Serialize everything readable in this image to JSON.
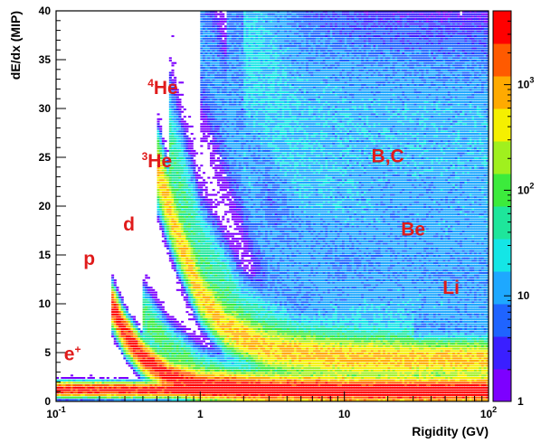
{
  "chart_data": {
    "type": "heatmap",
    "title": "",
    "xlabel": "Rigidity (GV)",
    "ylabel": "dE/dx (MIP)",
    "x_scale": "log",
    "xlim": [
      0.1,
      100
    ],
    "ylim": [
      0,
      40
    ],
    "x_ticks": [
      {
        "base": "10",
        "exp": "-1"
      },
      {
        "base": "1",
        "exp": ""
      },
      {
        "base": "10",
        "exp": ""
      },
      {
        "base": "10",
        "exp": "2"
      }
    ],
    "y_ticks": [
      "0",
      "5",
      "10",
      "15",
      "20",
      "25",
      "30",
      "35",
      "40"
    ],
    "colorbar": {
      "scale": "log",
      "range": [
        1,
        5000
      ],
      "ticks": [
        {
          "base": "1",
          "exp": ""
        },
        {
          "base": "10",
          "exp": ""
        },
        {
          "base": "10",
          "exp": "2"
        },
        {
          "base": "10",
          "exp": "3"
        }
      ],
      "colors": [
        "#7d00ff",
        "#3a1fff",
        "#1f64ff",
        "#1ea8ff",
        "#14e6e6",
        "#1ee69b",
        "#3ceb3c",
        "#a0f01e",
        "#f5f000",
        "#ffaa00",
        "#ff5a00",
        "#ff0000"
      ]
    },
    "bands": [
      {
        "label": "e⁺",
        "points": [
          [
            0.1,
            1.2
          ],
          [
            1,
            1.1
          ],
          [
            10,
            1.0
          ],
          [
            100,
            1.0
          ]
        ]
      },
      {
        "label": "p",
        "points": [
          [
            0.24,
            10
          ],
          [
            0.3,
            7
          ],
          [
            0.4,
            4.5
          ],
          [
            0.6,
            2.5
          ],
          [
            1,
            1.6
          ],
          [
            3,
            1.2
          ],
          [
            10,
            1.1
          ],
          [
            100,
            1.1
          ]
        ]
      },
      {
        "label": "d",
        "points": [
          [
            0.4,
            9
          ],
          [
            0.6,
            5.5
          ],
          [
            1,
            3
          ],
          [
            2,
            1.8
          ],
          [
            10,
            1.3
          ]
        ]
      },
      {
        "label": "³He",
        "points": [
          [
            0.5,
            24
          ],
          [
            0.7,
            17
          ],
          [
            1,
            11
          ],
          [
            1.5,
            7.5
          ],
          [
            3,
            5.2
          ],
          [
            10,
            4.4
          ],
          [
            100,
            4.2
          ]
        ]
      },
      {
        "label": "⁴He",
        "points": [
          [
            0.6,
            26
          ],
          [
            1,
            15
          ],
          [
            2,
            8
          ],
          [
            5,
            5.2
          ],
          [
            30,
            4.4
          ]
        ]
      },
      {
        "label": "Li",
        "points": [
          [
            1,
            38
          ],
          [
            3,
            15
          ],
          [
            10,
            10
          ],
          [
            100,
            9
          ]
        ]
      },
      {
        "label": "Be",
        "points": [
          [
            1.5,
            39
          ],
          [
            5,
            21
          ],
          [
            20,
            16
          ],
          [
            100,
            16
          ]
        ]
      },
      {
        "label": "B,C",
        "points": [
          [
            2,
            39
          ],
          [
            5,
            30
          ],
          [
            15,
            28
          ],
          [
            100,
            27
          ]
        ]
      }
    ],
    "annotations": [
      {
        "text": "B,C",
        "sup": "",
        "x": 20,
        "y": 24.5
      },
      {
        "text": "He",
        "sup": "4",
        "x": 0.55,
        "y": 31.5
      },
      {
        "text": "He",
        "sup": "3",
        "x": 0.5,
        "y": 24
      },
      {
        "text": "Be",
        "sup": "",
        "x": 30,
        "y": 17
      },
      {
        "text": "d",
        "sup": "",
        "x": 0.32,
        "y": 17.5
      },
      {
        "text": "p",
        "sup": "",
        "x": 0.17,
        "y": 14
      },
      {
        "text": "Li",
        "sup": "",
        "x": 55,
        "y": 11
      },
      {
        "text": "e",
        "sup": "+",
        "x": 0.13,
        "y": 4.2
      }
    ],
    "annotation_color": "#e01b1b"
  }
}
